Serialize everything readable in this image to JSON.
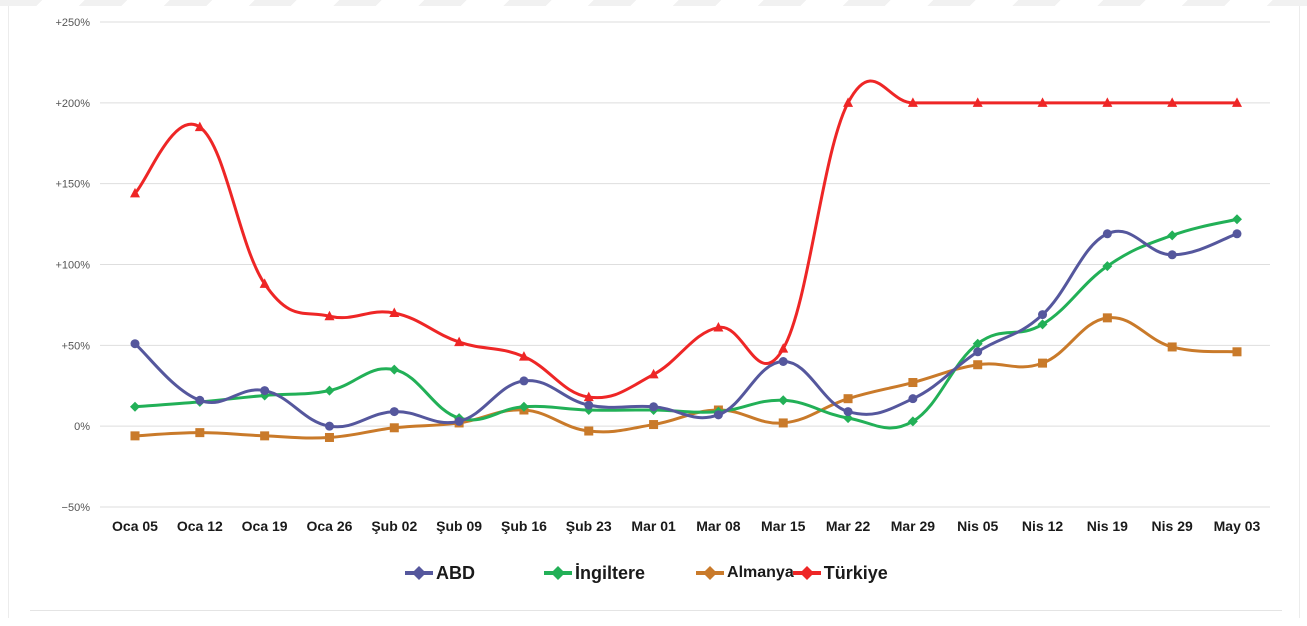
{
  "chart_data": {
    "type": "line",
    "title": "",
    "xlabel": "",
    "ylabel": "",
    "categories": [
      "Oca 05",
      "Oca 12",
      "Oca 19",
      "Oca 26",
      "Şub 02",
      "Şub 09",
      "Şub 16",
      "Şub 23",
      "Mar 01",
      "Mar 08",
      "Mar 15",
      "Mar 22",
      "Mar 29",
      "Nis 05",
      "Nis 12",
      "Nis 19",
      "Nis 29",
      "May 03"
    ],
    "ylim": [
      -50,
      250
    ],
    "yticks": [
      {
        "value": 250,
        "label": "+250%"
      },
      {
        "value": 200,
        "label": "+200%"
      },
      {
        "value": 150,
        "label": "+150%"
      },
      {
        "value": 100,
        "label": "+100%"
      },
      {
        "value": 50,
        "label": "+50%"
      },
      {
        "value": 0,
        "label": "0%"
      },
      {
        "value": -50,
        "label": "−50%"
      }
    ],
    "grid": "horizontal",
    "legend_position": "bottom-center",
    "series": [
      {
        "name": "ABD",
        "color": "#55579d",
        "marker": "circle",
        "values": [
          51,
          16,
          22,
          0,
          9,
          3,
          28,
          13,
          12,
          7,
          40,
          9,
          17,
          46,
          69,
          119,
          106,
          119
        ]
      },
      {
        "name": "İngiltere",
        "color": "#22b057",
        "marker": "diamond",
        "values": [
          12,
          15,
          19,
          22,
          35,
          5,
          12,
          10,
          10,
          9,
          16,
          5,
          3,
          51,
          63,
          99,
          118,
          128
        ]
      },
      {
        "name": "Almanya",
        "color": "#c97a2a",
        "marker": "square",
        "values": [
          -6,
          -4,
          -6,
          -7,
          -1,
          2,
          10,
          -3,
          1,
          10,
          2,
          17,
          27,
          38,
          39,
          67,
          49,
          46
        ]
      },
      {
        "name": "Türkiye",
        "color": "#ee2626",
        "marker": "triangle",
        "values": [
          144,
          185,
          88,
          68,
          70,
          52,
          43,
          18,
          32,
          61,
          48,
          200,
          200,
          200,
          200,
          200,
          200,
          200
        ]
      }
    ]
  }
}
